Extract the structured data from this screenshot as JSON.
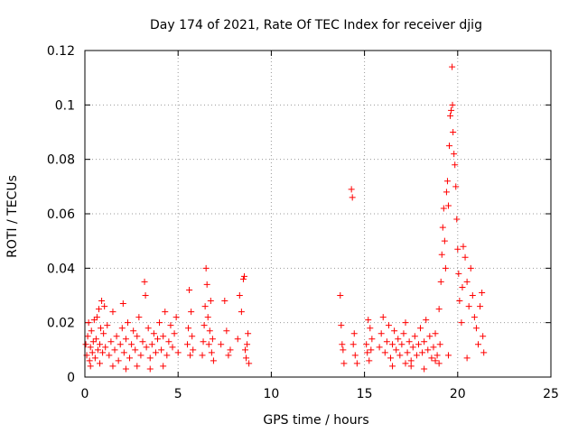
{
  "chart_data": {
    "type": "scatter",
    "title": "Day 174 of 2021, Rate Of TEC Index for receiver djig",
    "xlabel": "GPS time / hours",
    "ylabel": "ROTI / TECUs",
    "xlim": [
      0,
      25
    ],
    "ylim": [
      0,
      0.12
    ],
    "xticks": [
      0,
      5,
      10,
      15,
      20,
      25
    ],
    "xtick_labels": [
      "0",
      "5",
      "10",
      "15",
      "20",
      "25"
    ],
    "yticks": [
      0,
      0.02,
      0.04,
      0.06,
      0.08,
      0.1,
      0.12
    ],
    "ytick_labels": [
      "0",
      "0.02",
      "0.04",
      "0.06",
      "0.08",
      "0.1",
      "0.12"
    ],
    "grid": true,
    "marker": "plus",
    "marker_color": "#ff0000",
    "series": [
      {
        "name": "ROTI",
        "points": [
          [
            0.05,
            0.012
          ],
          [
            0.1,
            0.008
          ],
          [
            0.15,
            0.015
          ],
          [
            0.2,
            0.02
          ],
          [
            0.25,
            0.006
          ],
          [
            0.3,
            0.011
          ],
          [
            0.35,
            0.017
          ],
          [
            0.4,
            0.009
          ],
          [
            0.45,
            0.013
          ],
          [
            0.5,
            0.021
          ],
          [
            0.55,
            0.007
          ],
          [
            0.6,
            0.014
          ],
          [
            0.65,
            0.022
          ],
          [
            0.7,
            0.01
          ],
          [
            0.75,
            0.025
          ],
          [
            0.8,
            0.012
          ],
          [
            0.85,
            0.018
          ],
          [
            0.9,
            0.028
          ],
          [
            0.95,
            0.009
          ],
          [
            1.0,
            0.016
          ],
          [
            1.05,
            0.026
          ],
          [
            1.1,
            0.011
          ],
          [
            1.2,
            0.019
          ],
          [
            1.3,
            0.008
          ],
          [
            1.4,
            0.013
          ],
          [
            1.5,
            0.024
          ],
          [
            1.6,
            0.01
          ],
          [
            1.7,
            0.015
          ],
          [
            1.8,
            0.006
          ],
          [
            1.9,
            0.012
          ],
          [
            2.0,
            0.018
          ],
          [
            2.05,
            0.027
          ],
          [
            2.1,
            0.009
          ],
          [
            2.2,
            0.014
          ],
          [
            2.3,
            0.02
          ],
          [
            2.4,
            0.007
          ],
          [
            2.5,
            0.012
          ],
          [
            2.6,
            0.017
          ],
          [
            2.7,
            0.01
          ],
          [
            2.8,
            0.015
          ],
          [
            2.9,
            0.022
          ],
          [
            3.0,
            0.008
          ],
          [
            3.1,
            0.013
          ],
          [
            3.2,
            0.035
          ],
          [
            3.25,
            0.03
          ],
          [
            3.3,
            0.011
          ],
          [
            3.4,
            0.018
          ],
          [
            3.5,
            0.007
          ],
          [
            3.6,
            0.012
          ],
          [
            3.7,
            0.016
          ],
          [
            3.8,
            0.009
          ],
          [
            3.9,
            0.014
          ],
          [
            4.0,
            0.02
          ],
          [
            4.1,
            0.01
          ],
          [
            4.2,
            0.015
          ],
          [
            4.3,
            0.024
          ],
          [
            4.4,
            0.008
          ],
          [
            4.5,
            0.013
          ],
          [
            4.6,
            0.019
          ],
          [
            4.7,
            0.011
          ],
          [
            4.8,
            0.016
          ],
          [
            4.9,
            0.022
          ],
          [
            5.0,
            0.009
          ],
          [
            0.3,
            0.004
          ],
          [
            0.8,
            0.005
          ],
          [
            1.5,
            0.004
          ],
          [
            2.2,
            0.003
          ],
          [
            2.8,
            0.004
          ],
          [
            3.5,
            0.003
          ],
          [
            4.2,
            0.004
          ],
          [
            5.5,
            0.012
          ],
          [
            5.55,
            0.018
          ],
          [
            5.6,
            0.032
          ],
          [
            5.65,
            0.008
          ],
          [
            5.7,
            0.024
          ],
          [
            5.75,
            0.015
          ],
          [
            5.8,
            0.01
          ],
          [
            6.3,
            0.008
          ],
          [
            6.35,
            0.013
          ],
          [
            6.4,
            0.019
          ],
          [
            6.45,
            0.026
          ],
          [
            6.5,
            0.04
          ],
          [
            6.55,
            0.034
          ],
          [
            6.6,
            0.022
          ],
          [
            6.65,
            0.012
          ],
          [
            6.7,
            0.017
          ],
          [
            6.75,
            0.028
          ],
          [
            6.8,
            0.009
          ],
          [
            6.85,
            0.014
          ],
          [
            6.9,
            0.006
          ],
          [
            7.3,
            0.012
          ],
          [
            7.5,
            0.028
          ],
          [
            7.6,
            0.017
          ],
          [
            7.7,
            0.008
          ],
          [
            7.8,
            0.01
          ],
          [
            8.2,
            0.014
          ],
          [
            8.3,
            0.03
          ],
          [
            8.4,
            0.024
          ],
          [
            8.5,
            0.036
          ],
          [
            8.55,
            0.037
          ],
          [
            8.6,
            0.01
          ],
          [
            8.65,
            0.007
          ],
          [
            8.7,
            0.012
          ],
          [
            8.75,
            0.016
          ],
          [
            8.8,
            0.005
          ],
          [
            13.7,
            0.03
          ],
          [
            13.75,
            0.019
          ],
          [
            13.8,
            0.012
          ],
          [
            13.85,
            0.01
          ],
          [
            13.9,
            0.005
          ],
          [
            14.3,
            0.069
          ],
          [
            14.35,
            0.066
          ],
          [
            14.4,
            0.012
          ],
          [
            14.45,
            0.016
          ],
          [
            14.5,
            0.008
          ],
          [
            14.6,
            0.005
          ],
          [
            15.1,
            0.012
          ],
          [
            15.15,
            0.009
          ],
          [
            15.2,
            0.021
          ],
          [
            15.25,
            0.006
          ],
          [
            15.3,
            0.018
          ],
          [
            15.35,
            0.01
          ],
          [
            15.4,
            0.014
          ],
          [
            15.8,
            0.011
          ],
          [
            15.9,
            0.016
          ],
          [
            16.0,
            0.022
          ],
          [
            16.1,
            0.009
          ],
          [
            16.2,
            0.013
          ],
          [
            16.3,
            0.019
          ],
          [
            16.4,
            0.007
          ],
          [
            16.5,
            0.012
          ],
          [
            16.6,
            0.017
          ],
          [
            16.7,
            0.01
          ],
          [
            16.8,
            0.014
          ],
          [
            16.9,
            0.008
          ],
          [
            17.0,
            0.012
          ],
          [
            17.1,
            0.016
          ],
          [
            17.2,
            0.02
          ],
          [
            17.3,
            0.009
          ],
          [
            17.4,
            0.013
          ],
          [
            17.5,
            0.006
          ],
          [
            17.6,
            0.011
          ],
          [
            17.7,
            0.015
          ],
          [
            17.8,
            0.008
          ],
          [
            17.9,
            0.012
          ],
          [
            18.0,
            0.018
          ],
          [
            18.1,
            0.009
          ],
          [
            18.2,
            0.013
          ],
          [
            18.3,
            0.021
          ],
          [
            18.4,
            0.01
          ],
          [
            18.5,
            0.015
          ],
          [
            18.6,
            0.007
          ],
          [
            18.7,
            0.011
          ],
          [
            18.8,
            0.016
          ],
          [
            18.9,
            0.008
          ],
          [
            19.0,
            0.025
          ],
          [
            19.05,
            0.012
          ],
          [
            19.1,
            0.035
          ],
          [
            19.15,
            0.045
          ],
          [
            19.2,
            0.055
          ],
          [
            19.25,
            0.062
          ],
          [
            19.3,
            0.05
          ],
          [
            19.35,
            0.04
          ],
          [
            19.4,
            0.068
          ],
          [
            19.45,
            0.072
          ],
          [
            19.5,
            0.063
          ],
          [
            19.55,
            0.085
          ],
          [
            19.6,
            0.096
          ],
          [
            19.65,
            0.098
          ],
          [
            19.7,
            0.114
          ],
          [
            19.72,
            0.1
          ],
          [
            19.75,
            0.09
          ],
          [
            19.8,
            0.082
          ],
          [
            19.85,
            0.078
          ],
          [
            19.9,
            0.07
          ],
          [
            19.95,
            0.058
          ],
          [
            20.0,
            0.047
          ],
          [
            20.05,
            0.038
          ],
          [
            20.1,
            0.028
          ],
          [
            20.2,
            0.02
          ],
          [
            20.25,
            0.033
          ],
          [
            20.3,
            0.048
          ],
          [
            20.4,
            0.044
          ],
          [
            20.5,
            0.035
          ],
          [
            20.6,
            0.026
          ],
          [
            20.7,
            0.04
          ],
          [
            20.8,
            0.03
          ],
          [
            20.9,
            0.022
          ],
          [
            21.0,
            0.018
          ],
          [
            21.1,
            0.012
          ],
          [
            21.2,
            0.026
          ],
          [
            21.3,
            0.031
          ],
          [
            21.35,
            0.015
          ],
          [
            21.4,
            0.009
          ],
          [
            17.5,
            0.004
          ],
          [
            18.2,
            0.003
          ],
          [
            19.0,
            0.005
          ],
          [
            16.5,
            0.004
          ],
          [
            20.5,
            0.007
          ],
          [
            19.5,
            0.008
          ],
          [
            18.8,
            0.006
          ],
          [
            17.2,
            0.005
          ]
        ]
      }
    ]
  }
}
